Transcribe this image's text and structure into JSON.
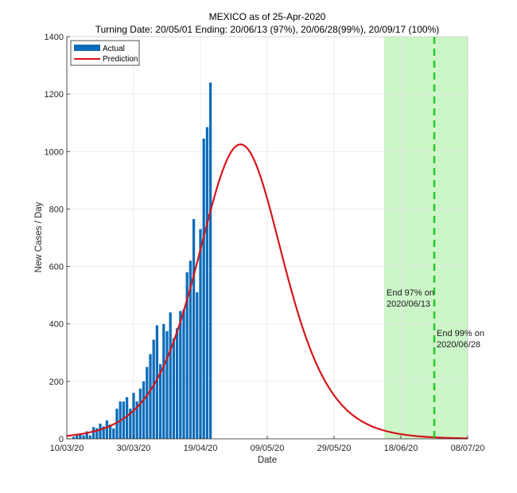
{
  "chart_data": {
    "type": "bar",
    "title": "MEXICO as of 25-Apr-2020",
    "subtitle": "Turning Date: 20/05/01  Ending: 20/06/13 (97%), 20/06/28(99%), 20/09/17 (100%)",
    "xlabel": "Date",
    "ylabel": "New Cases / Day",
    "x_start_date": "2020-03-10",
    "xlim_days": [
      0,
      120
    ],
    "ylim": [
      0,
      1400
    ],
    "yticks": [
      0,
      200,
      400,
      600,
      800,
      1000,
      1200,
      1400
    ],
    "xticks": [
      {
        "day": 0,
        "label": "10/03/20"
      },
      {
        "day": 20,
        "label": "30/03/20"
      },
      {
        "day": 40,
        "label": "19/04/20"
      },
      {
        "day": 60,
        "label": "09/05/20"
      },
      {
        "day": 80,
        "label": "29/05/20"
      },
      {
        "day": 100,
        "label": "18/06/20"
      },
      {
        "day": 120,
        "label": "08/07/20"
      }
    ],
    "grid": true,
    "legend": {
      "position": "top-left",
      "entries": [
        "Actual",
        "Prediction"
      ]
    },
    "colors": {
      "actual": "#0b6cb8",
      "prediction": "#d4161b",
      "band": "#ccf5c8",
      "dashed": "#22cc22"
    },
    "series": [
      {
        "name": "Actual",
        "type": "bar",
        "start_day": 2,
        "values": [
          7,
          12,
          14,
          12,
          26,
          12,
          41,
          37,
          53,
          43,
          64,
          50,
          36,
          105,
          130,
          130,
          145,
          105,
          160,
          130,
          175,
          200,
          250,
          295,
          345,
          395,
          260,
          400,
          375,
          440,
          350,
          385,
          445,
          450,
          580,
          620,
          765,
          510,
          730,
          1045,
          1085,
          1240
        ]
      },
      {
        "name": "Prediction",
        "type": "line",
        "peak_day": 52,
        "peak_value": 1025,
        "description": "logistic-derivative curve",
        "points_day_value": [
          [
            0,
            15
          ],
          [
            10,
            40
          ],
          [
            20,
            120
          ],
          [
            30,
            320
          ],
          [
            40,
            700
          ],
          [
            45,
            900
          ],
          [
            50,
            1010
          ],
          [
            52,
            1025
          ],
          [
            55,
            1005
          ],
          [
            60,
            900
          ],
          [
            65,
            720
          ],
          [
            70,
            530
          ],
          [
            75,
            370
          ],
          [
            80,
            245
          ],
          [
            85,
            160
          ],
          [
            90,
            110
          ],
          [
            95,
            75
          ],
          [
            100,
            52
          ],
          [
            105,
            37
          ],
          [
            110,
            27
          ],
          [
            115,
            20
          ],
          [
            120,
            15
          ]
        ]
      }
    ],
    "annotations": [
      {
        "text_line1": "End 97% on",
        "text_line2": "2020/06/13",
        "day": 95
      },
      {
        "text_line1": "End 99% on",
        "text_line2": "2020/06/28",
        "day": 110
      }
    ],
    "shaded_region_days": [
      95,
      120
    ],
    "dashed_line_day": 110
  }
}
